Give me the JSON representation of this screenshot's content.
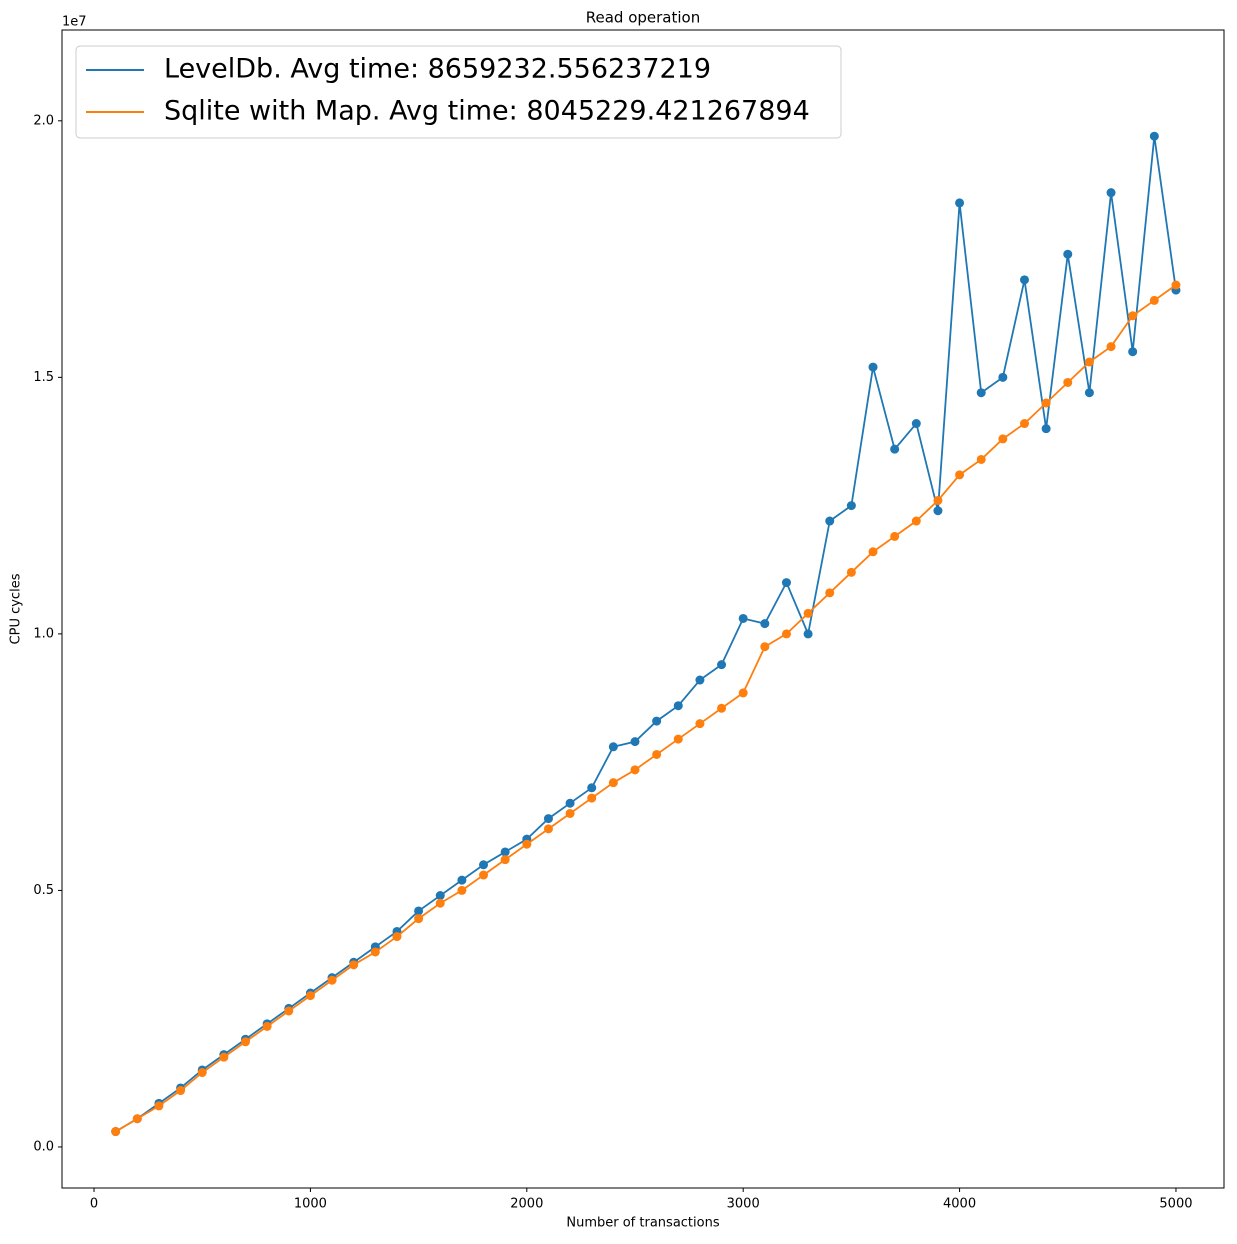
{
  "chart_data": {
    "type": "line",
    "title": "Read operation",
    "x_label": "Number of transactions",
    "y_label": "CPU cycles",
    "y_offset_label": "1e7",
    "x": [
      100,
      200,
      300,
      400,
      500,
      600,
      700,
      800,
      900,
      1000,
      1100,
      1200,
      1300,
      1400,
      1500,
      1600,
      1700,
      1800,
      1900,
      2000,
      2100,
      2200,
      2300,
      2400,
      2500,
      2600,
      2700,
      2800,
      2900,
      3000,
      3100,
      3200,
      3300,
      3400,
      3500,
      3600,
      3700,
      3800,
      3900,
      4000,
      4100,
      4200,
      4300,
      4400,
      4500,
      4600,
      4700,
      4800,
      4900,
      5000
    ],
    "series": [
      {
        "name": "LevelDb. Avg time: 8659232.556237219",
        "color": "#1f77b4",
        "values": [
          300000,
          550000,
          850000,
          1150000,
          1500000,
          1800000,
          2100000,
          2400000,
          2700000,
          3000000,
          3300000,
          3600000,
          3900000,
          4200000,
          4600000,
          4900000,
          5200000,
          5500000,
          5750000,
          6000000,
          6400000,
          6700000,
          7000000,
          7800000,
          7900000,
          8300000,
          8600000,
          9100000,
          9400000,
          10300000,
          10200000,
          11000000,
          10000000,
          12200000,
          12500000,
          15200000,
          13600000,
          14100000,
          12400000,
          18400000,
          14700000,
          15000000,
          16900000,
          14000000,
          17400000,
          14700000,
          18600000,
          15500000,
          19700000,
          16700000
        ]
      },
      {
        "name": "Sqlite with Map. Avg time: 8045229.421267894",
        "color": "#ff7f0e",
        "values": [
          300000,
          550000,
          800000,
          1100000,
          1450000,
          1750000,
          2050000,
          2350000,
          2650000,
          2950000,
          3250000,
          3550000,
          3800000,
          4100000,
          4450000,
          4750000,
          5000000,
          5300000,
          5600000,
          5900000,
          6200000,
          6500000,
          6800000,
          7100000,
          7350000,
          7650000,
          7950000,
          8250000,
          8550000,
          8850000,
          9750000,
          10000000,
          10400000,
          10800000,
          11200000,
          11600000,
          11900000,
          12200000,
          12600000,
          13100000,
          13400000,
          13800000,
          14100000,
          14500000,
          14900000,
          15300000,
          15600000,
          16200000,
          16500000,
          16800000
        ]
      }
    ],
    "xlim": [
      -148,
      5222
    ],
    "ylim": [
      -800000,
      21770000
    ],
    "xticks": [
      0,
      1000,
      2000,
      3000,
      4000,
      5000
    ],
    "yticks": [
      {
        "value": 0,
        "label": "0.0"
      },
      {
        "value": 5000000,
        "label": "0.5"
      },
      {
        "value": 10000000,
        "label": "1.0"
      },
      {
        "value": 15000000,
        "label": "1.5"
      },
      {
        "value": 20000000,
        "label": "2.0"
      }
    ],
    "legend": "upper left",
    "markers": true
  }
}
